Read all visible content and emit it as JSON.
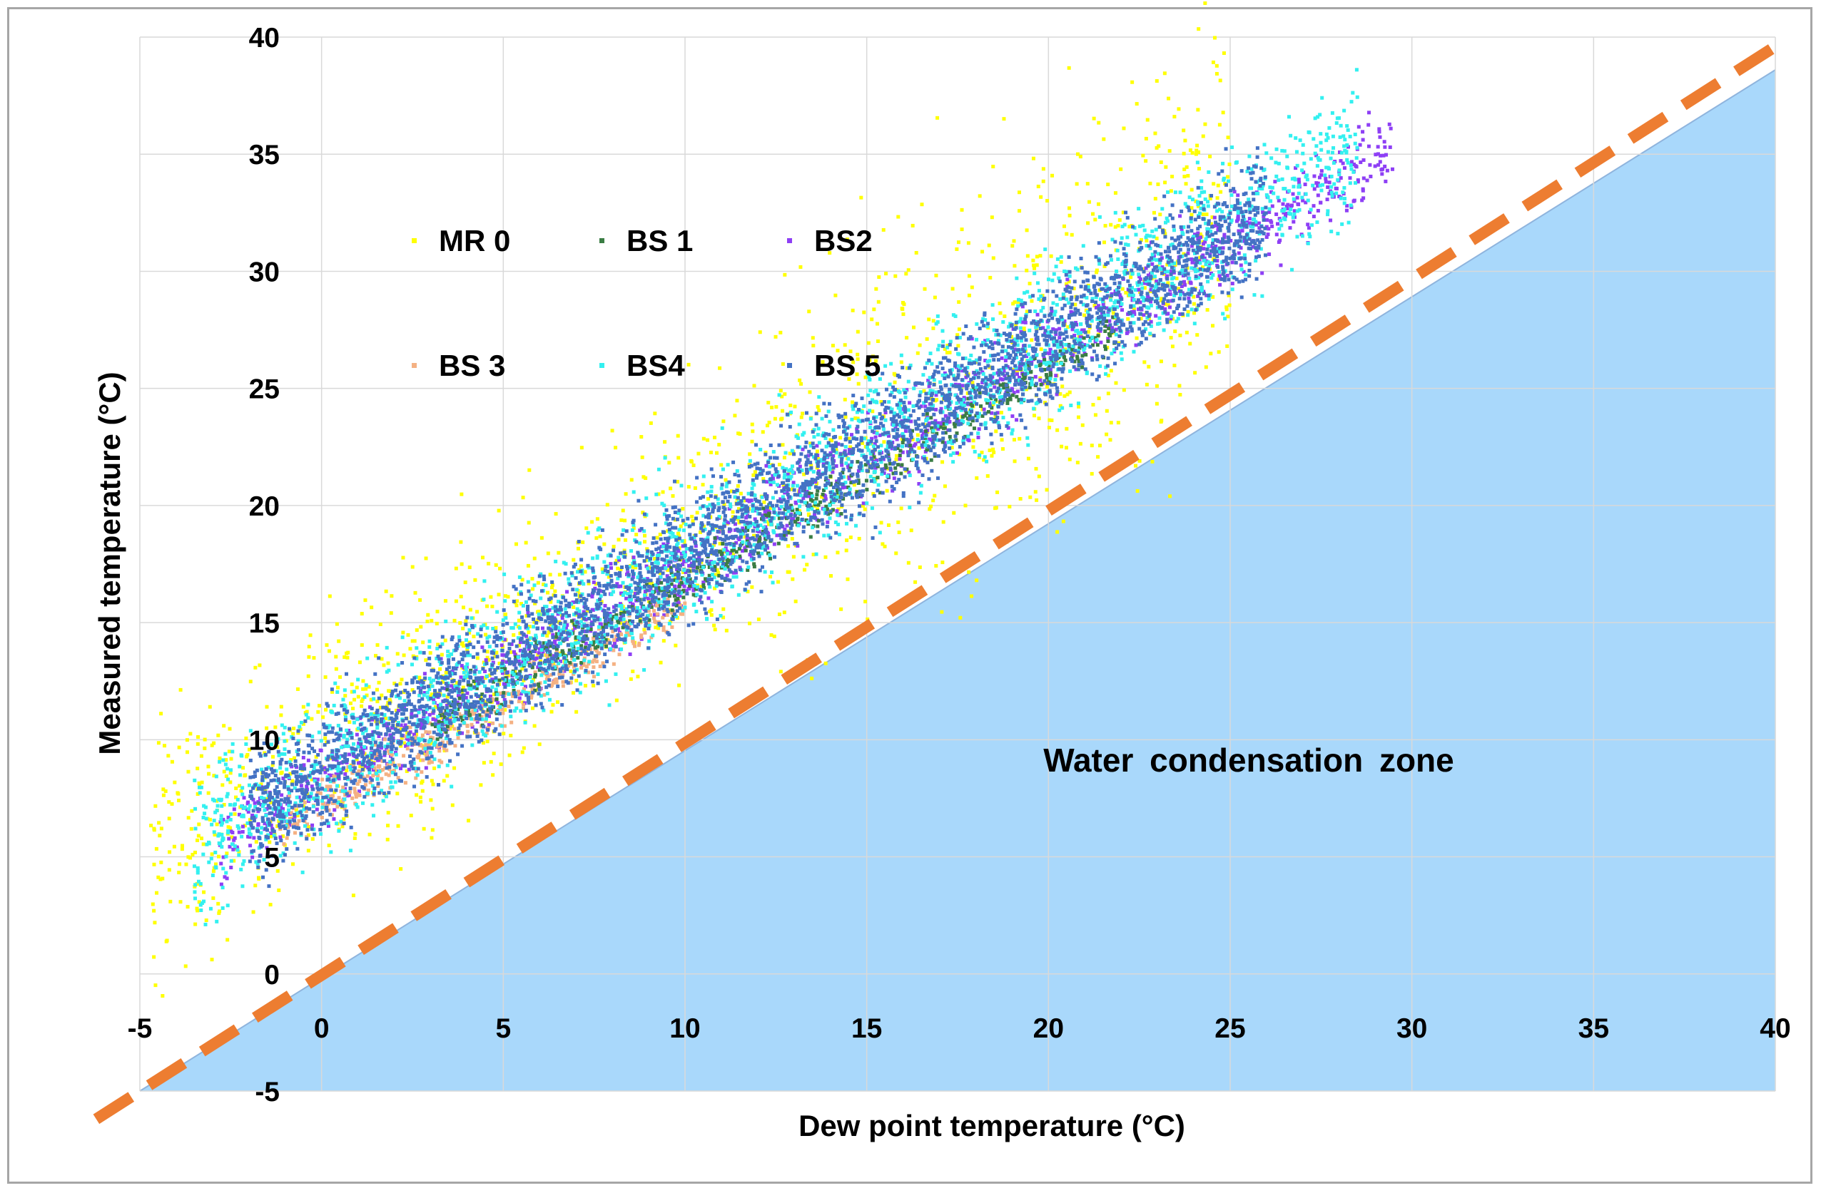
{
  "chart_data": {
    "type": "scatter",
    "title": "",
    "xlabel": "Dew point temperature (°C)",
    "ylabel": "Measured  temperature (°C)",
    "xlim": [
      -5,
      40
    ],
    "ylim": [
      -5,
      40
    ],
    "x_ticks": [
      "-5",
      "0",
      "5",
      "10",
      "15",
      "20",
      "25",
      "30",
      "35",
      "40"
    ],
    "y_ticks": [
      "-5",
      "0",
      "5",
      "10",
      "15",
      "20",
      "25",
      "30",
      "35",
      "40"
    ],
    "grid": true,
    "legend_position": "top-left, inside plot, 2 rows of 3",
    "series": [
      {
        "name": "MR 0",
        "color": "#ffff00",
        "x_range": [
          -4.7,
          25
        ],
        "trend": {
          "slope": 0.93,
          "intercept": 11.5,
          "spread": 2.6
        }
      },
      {
        "name": "BS 1",
        "color": "#3a7d44",
        "x_range": [
          3,
          22
        ],
        "trend": {
          "slope": 0.9,
          "intercept": 10.0,
          "spread": 0.5
        }
      },
      {
        "name": "BS2",
        "color": "#8e3ff5",
        "x_range": [
          -2.8,
          29.5
        ],
        "trend": {
          "slope": 0.92,
          "intercept": 10.4,
          "spread": 0.9
        }
      },
      {
        "name": "BS 3",
        "color": "#f4b183",
        "x_range": [
          -1.2,
          10
        ],
        "trend": {
          "slope": 0.85,
          "intercept": 9.5,
          "spread": 0.5
        }
      },
      {
        "name": "BS4",
        "color": "#33f0f0",
        "x_range": [
          -3.5,
          28.5
        ],
        "trend": {
          "slope": 0.93,
          "intercept": 10.9,
          "spread": 1.6
        }
      },
      {
        "name": "BS 5",
        "color": "#4472c4",
        "x_range": [
          -2,
          26
        ],
        "trend": {
          "slope": 0.92,
          "intercept": 10.8,
          "spread": 1.3
        }
      }
    ],
    "reference_line": {
      "style": "dashed",
      "color": "#ed7d31",
      "points": [
        [
          -6.2,
          -6.2
        ],
        [
          40,
          39.6
        ]
      ]
    },
    "condensation_zone": {
      "label": "Water  condensation  zone",
      "color": "#a9d8fb",
      "boundary": [
        [
          -5,
          -5
        ],
        [
          40,
          38.6
        ]
      ]
    }
  }
}
